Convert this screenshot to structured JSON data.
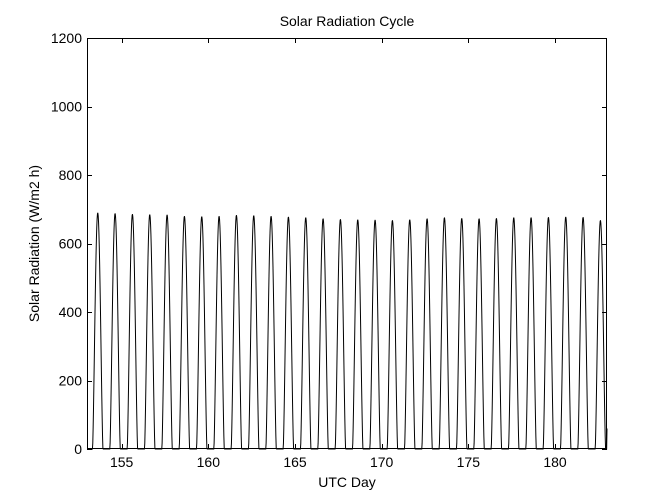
{
  "chart_data": {
    "type": "line",
    "title": "Solar Radiation Cycle",
    "xlabel": "UTC Day",
    "ylabel": "Solar Radiation (W/m2 h)",
    "xlim": [
      153,
      183
    ],
    "ylim": [
      0,
      1200
    ],
    "xticks": [
      155,
      160,
      165,
      170,
      175,
      180
    ],
    "yticks": [
      0,
      200,
      400,
      600,
      800,
      1000,
      1200
    ],
    "grid": false,
    "line_color": "#000000",
    "series": [
      {
        "peaks": [
          {
            "day": 153.62,
            "value": 690
          },
          {
            "day": 154.62,
            "value": 688
          },
          {
            "day": 155.62,
            "value": 686
          },
          {
            "day": 156.62,
            "value": 685
          },
          {
            "day": 157.62,
            "value": 684
          },
          {
            "day": 158.62,
            "value": 680
          },
          {
            "day": 159.62,
            "value": 679
          },
          {
            "day": 160.62,
            "value": 680
          },
          {
            "day": 161.62,
            "value": 683
          },
          {
            "day": 162.62,
            "value": 682
          },
          {
            "day": 163.62,
            "value": 680
          },
          {
            "day": 164.62,
            "value": 678
          },
          {
            "day": 165.62,
            "value": 676
          },
          {
            "day": 166.62,
            "value": 673
          },
          {
            "day": 167.62,
            "value": 671
          },
          {
            "day": 168.62,
            "value": 670
          },
          {
            "day": 169.62,
            "value": 669
          },
          {
            "day": 170.62,
            "value": 668
          },
          {
            "day": 171.62,
            "value": 670
          },
          {
            "day": 172.62,
            "value": 673
          },
          {
            "day": 173.62,
            "value": 676
          },
          {
            "day": 174.62,
            "value": 674
          },
          {
            "day": 175.62,
            "value": 673
          },
          {
            "day": 176.62,
            "value": 674
          },
          {
            "day": 177.62,
            "value": 676
          },
          {
            "day": 178.62,
            "value": 676
          },
          {
            "day": 179.62,
            "value": 677
          },
          {
            "day": 180.62,
            "value": 678
          },
          {
            "day": 181.62,
            "value": 677
          },
          {
            "day": 182.62,
            "value": 668
          }
        ],
        "daylight_start_fraction": 0.32,
        "daylight_end_fraction": 0.92,
        "last_value": 60
      }
    ]
  }
}
